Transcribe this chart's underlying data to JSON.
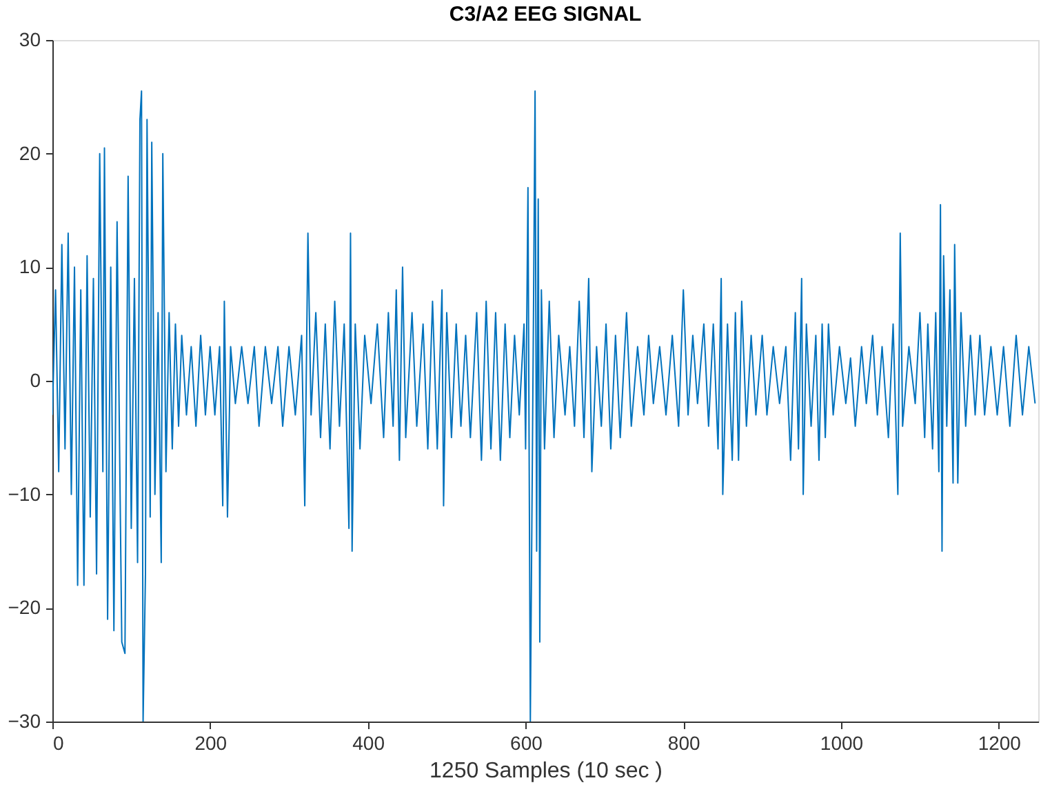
{
  "chart_data": {
    "type": "line",
    "title": "C3/A2 EEG SIGNAL",
    "xlabel": "1250 Samples (10 sec )",
    "x": [
      0,
      4,
      8,
      12,
      16,
      20,
      24,
      28,
      32,
      36,
      40,
      44,
      48,
      52,
      56,
      60,
      64,
      66,
      70,
      74,
      78,
      82,
      86,
      88,
      92,
      96,
      100,
      104,
      108,
      111,
      113,
      115,
      118,
      120,
      124,
      126,
      130,
      134,
      138,
      140,
      144,
      148,
      152,
      156,
      160,
      164,
      170,
      176,
      182,
      188,
      194,
      200,
      206,
      212,
      216,
      218,
      222,
      226,
      232,
      240,
      248,
      256,
      262,
      270,
      278,
      286,
      292,
      300,
      308,
      316,
      320,
      324,
      328,
      334,
      340,
      346,
      352,
      358,
      364,
      370,
      376,
      378,
      380,
      384,
      390,
      396,
      404,
      412,
      420,
      426,
      432,
      436,
      440,
      444,
      448,
      456,
      462,
      470,
      476,
      482,
      488,
      494,
      496,
      500,
      506,
      512,
      518,
      524,
      530,
      538,
      544,
      550,
      556,
      562,
      568,
      574,
      580,
      586,
      592,
      598,
      600,
      603,
      606,
      610,
      612,
      614,
      616,
      618,
      620,
      624,
      630,
      636,
      642,
      650,
      656,
      662,
      668,
      674,
      680,
      684,
      690,
      696,
      702,
      708,
      714,
      720,
      728,
      734,
      742,
      750,
      756,
      762,
      770,
      778,
      786,
      794,
      800,
      806,
      812,
      818,
      826,
      832,
      838,
      844,
      848,
      850,
      856,
      862,
      866,
      870,
      874,
      880,
      886,
      892,
      900,
      906,
      914,
      922,
      930,
      936,
      942,
      946,
      950,
      952,
      956,
      962,
      968,
      972,
      976,
      980,
      984,
      990,
      998,
      1006,
      1012,
      1018,
      1026,
      1032,
      1040,
      1046,
      1052,
      1060,
      1066,
      1072,
      1075,
      1078,
      1086,
      1094,
      1100,
      1106,
      1110,
      1116,
      1120,
      1124,
      1126,
      1128,
      1130,
      1134,
      1138,
      1142,
      1144,
      1148,
      1152,
      1158,
      1164,
      1170,
      1176,
      1182,
      1190,
      1198,
      1206,
      1214,
      1222,
      1230,
      1238,
      1246
    ],
    "values": [
      -3,
      8,
      -8,
      12,
      -6,
      13,
      -10,
      10,
      -18,
      8,
      -18,
      11,
      -12,
      9,
      -17,
      20,
      -8,
      20.5,
      -21,
      10,
      -22,
      14,
      -11,
      -23,
      -24,
      18,
      -13,
      9,
      -16,
      23,
      25.5,
      -30,
      -17,
      23,
      -12,
      21,
      -10,
      6,
      -16,
      20,
      -8,
      6,
      -6,
      5,
      -4,
      4,
      -3,
      3,
      -4,
      4,
      -3,
      3,
      -3,
      3,
      -11,
      7,
      -12,
      3,
      -2,
      3,
      -2,
      3,
      -4,
      3,
      -2,
      3,
      -4,
      3,
      -3,
      4,
      -11,
      13,
      -3,
      6,
      -5,
      5,
      -6,
      7,
      -4,
      5,
      -13,
      13,
      -15,
      5,
      -6,
      4,
      -2,
      5,
      -5,
      6,
      -4,
      8,
      -7,
      10,
      -5,
      6,
      -4,
      5,
      -6,
      7,
      -6,
      8,
      -11,
      6,
      -5,
      5,
      -4,
      4,
      -5,
      6,
      -7,
      7,
      -6,
      6,
      -7,
      5,
      -5,
      4,
      -3,
      5,
      -6,
      17,
      -30,
      6,
      25.5,
      -15,
      16,
      -23,
      8,
      -6,
      7,
      -5,
      4,
      -3,
      3,
      -4,
      7,
      -5,
      9,
      -8,
      3,
      -4,
      5,
      -6,
      4,
      -5,
      6,
      -4,
      3,
      -3,
      4,
      -2,
      3,
      -3,
      4,
      -4,
      8,
      -3,
      4,
      -2,
      5,
      -4,
      5,
      -6,
      9,
      -10,
      5,
      -7,
      6,
      -7,
      7,
      -4,
      4,
      -3,
      4,
      -3,
      3,
      -2,
      3,
      -7,
      6,
      -6,
      9,
      -10,
      5,
      -4,
      4,
      -7,
      5,
      -5,
      5,
      -3,
      3,
      -2,
      2,
      -4,
      3,
      -2,
      4,
      -3,
      3,
      -5,
      5,
      -10,
      13,
      -4,
      3,
      -2,
      6,
      -5,
      5,
      -6,
      6,
      -8,
      15.5,
      -15,
      11,
      -4,
      8,
      -9,
      12,
      -9,
      6,
      -4,
      4,
      -3,
      4,
      -3,
      3,
      -3,
      3,
      -4,
      4,
      -3,
      3,
      -2
    ],
    "color": "#0072bd",
    "xlim": [
      0,
      1250
    ],
    "xticks": [
      0,
      200,
      400,
      600,
      800,
      1000,
      1200
    ],
    "ylim": [
      -30,
      30
    ],
    "yticks": [
      -30,
      -20,
      -10,
      0,
      10,
      20,
      30
    ],
    "grid": false,
    "marker": "none",
    "line_style": "solid"
  }
}
